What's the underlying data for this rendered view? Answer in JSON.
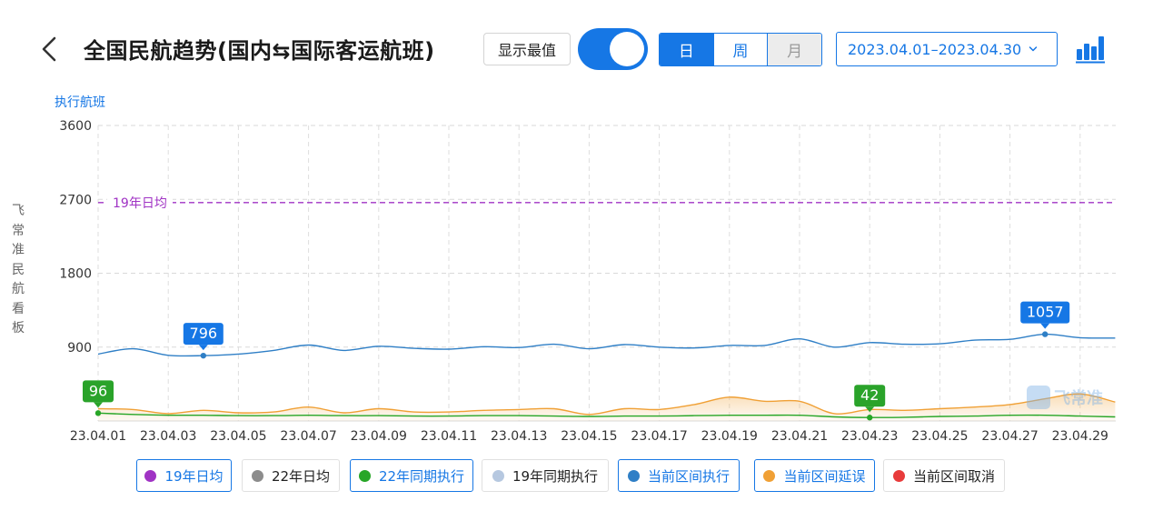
{
  "header": {
    "title": "全国民航趋势(国内⇆国际客运航班)",
    "show_max_label": "显示最值",
    "toggle_on": true,
    "period_tabs": [
      {
        "label": "日",
        "state": "active"
      },
      {
        "label": "周",
        "state": "normal"
      },
      {
        "label": "月",
        "state": "disabled"
      }
    ],
    "date_range": "2023.04.01–2023.04.30"
  },
  "side_label": "飞常准民航看板",
  "watermark": "飞常准",
  "colors": {
    "accent": "#1677e5",
    "avg19": "#a033c4",
    "avg22": "#8c8c8c",
    "same22": "#27a627",
    "same19": "#b6c8e0",
    "current_exec": "#2f7fc6",
    "current_delay": "#f0a035",
    "current_cancel": "#e83b3b"
  },
  "chart_data": {
    "type": "line",
    "ylabel": "执行航班",
    "ylim": [
      0,
      3600
    ],
    "yticks": [
      3600,
      2700,
      1800,
      900
    ],
    "x_ticks": [
      "23.04.01",
      "23.04.03",
      "23.04.05",
      "23.04.07",
      "23.04.09",
      "23.04.11",
      "23.04.13",
      "23.04.15",
      "23.04.17",
      "23.04.19",
      "23.04.21",
      "23.04.23",
      "23.04.25",
      "23.04.27",
      "23.04.29"
    ],
    "reference_line": {
      "name": "19年日均",
      "value": 2660
    },
    "series": [
      {
        "name": "当前区间执行",
        "x": [
          "23.04.01",
          "23.04.02",
          "23.04.03",
          "23.04.04",
          "23.04.05",
          "23.04.06",
          "23.04.07",
          "23.04.08",
          "23.04.09",
          "23.04.10",
          "23.04.11",
          "23.04.12",
          "23.04.13",
          "23.04.14",
          "23.04.15",
          "23.04.16",
          "23.04.17",
          "23.04.18",
          "23.04.19",
          "23.04.20",
          "23.04.21",
          "23.04.22",
          "23.04.23",
          "23.04.24",
          "23.04.25",
          "23.04.26",
          "23.04.27",
          "23.04.28",
          "23.04.29",
          "23.04.30"
        ],
        "values": [
          815,
          880,
          800,
          796,
          815,
          860,
          925,
          860,
          910,
          885,
          875,
          905,
          895,
          935,
          880,
          930,
          900,
          890,
          920,
          920,
          1000,
          900,
          955,
          935,
          940,
          985,
          995,
          1057,
          1015,
          1010
        ]
      },
      {
        "name": "当前区间延误",
        "x": [
          "23.04.01",
          "23.04.02",
          "23.04.03",
          "23.04.04",
          "23.04.05",
          "23.04.06",
          "23.04.07",
          "23.04.08",
          "23.04.09",
          "23.04.10",
          "23.04.11",
          "23.04.12",
          "23.04.13",
          "23.04.14",
          "23.04.15",
          "23.04.16",
          "23.04.17",
          "23.04.18",
          "23.04.19",
          "23.04.20",
          "23.04.21",
          "23.04.22",
          "23.04.23",
          "23.04.24",
          "23.04.25",
          "23.04.26",
          "23.04.27",
          "23.04.28",
          "23.04.29",
          "23.04.30"
        ],
        "values": [
          150,
          140,
          90,
          130,
          100,
          110,
          170,
          100,
          150,
          110,
          110,
          130,
          140,
          150,
          80,
          150,
          140,
          200,
          290,
          240,
          240,
          90,
          140,
          130,
          150,
          170,
          200,
          270,
          330,
          230
        ]
      },
      {
        "name": "22年同期执行",
        "x": [
          "23.04.01",
          "23.04.02",
          "23.04.03",
          "23.04.04",
          "23.04.05",
          "23.04.06",
          "23.04.07",
          "23.04.08",
          "23.04.09",
          "23.04.10",
          "23.04.11",
          "23.04.12",
          "23.04.13",
          "23.04.14",
          "23.04.15",
          "23.04.16",
          "23.04.17",
          "23.04.18",
          "23.04.19",
          "23.04.20",
          "23.04.21",
          "23.04.22",
          "23.04.23",
          "23.04.24",
          "23.04.25",
          "23.04.26",
          "23.04.27",
          "23.04.28",
          "23.04.29",
          "23.04.30"
        ],
        "values": [
          96,
          80,
          70,
          70,
          65,
          65,
          70,
          65,
          65,
          60,
          60,
          65,
          65,
          60,
          55,
          60,
          60,
          65,
          70,
          70,
          70,
          50,
          42,
          45,
          55,
          60,
          70,
          70,
          60,
          50
        ]
      }
    ],
    "annotations": [
      {
        "series": "当前区间执行",
        "x": "23.04.04",
        "label": "796"
      },
      {
        "series": "当前区间执行",
        "x": "23.04.28",
        "label": "1057"
      },
      {
        "series": "22年同期执行",
        "x": "23.04.01",
        "label": "96"
      },
      {
        "series": "22年同期执行",
        "x": "23.04.23",
        "label": "42"
      }
    ],
    "legend_position": "bottom",
    "legend": [
      {
        "label": "19年日均",
        "color_key": "avg19",
        "on": true
      },
      {
        "label": "22年日均",
        "color_key": "avg22",
        "on": false
      },
      {
        "label": "22年同期执行",
        "color_key": "same22",
        "on": true
      },
      {
        "label": "19年同期执行",
        "color_key": "same19",
        "on": false
      },
      {
        "label": "当前区间执行",
        "color_key": "current_exec",
        "on": true
      },
      {
        "label": "当前区间延误",
        "color_key": "current_delay",
        "on": true
      },
      {
        "label": "当前区间取消",
        "color_key": "current_cancel",
        "on": false
      }
    ]
  }
}
